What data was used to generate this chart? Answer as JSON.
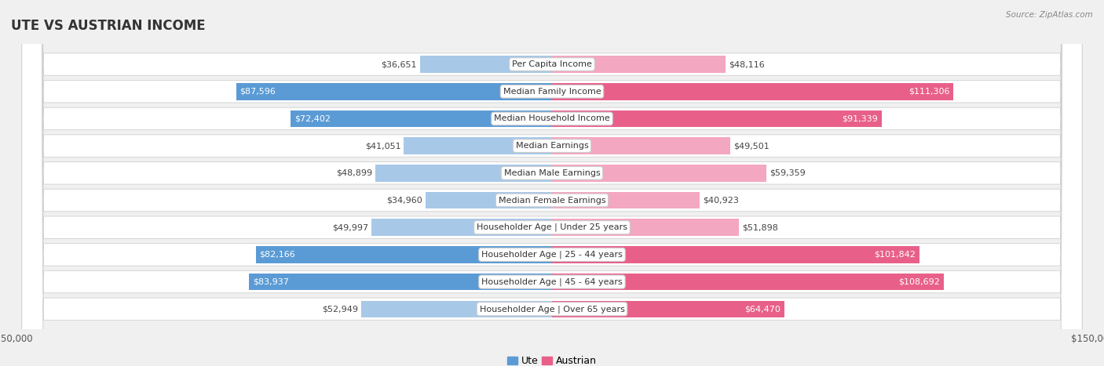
{
  "title": "UTE VS AUSTRIAN INCOME",
  "source": "Source: ZipAtlas.com",
  "categories": [
    "Per Capita Income",
    "Median Family Income",
    "Median Household Income",
    "Median Earnings",
    "Median Male Earnings",
    "Median Female Earnings",
    "Householder Age | Under 25 years",
    "Householder Age | 25 - 44 years",
    "Householder Age | 45 - 64 years",
    "Householder Age | Over 65 years"
  ],
  "ute_values": [
    36651,
    87596,
    72402,
    41051,
    48899,
    34960,
    49997,
    82166,
    83937,
    52949
  ],
  "austrian_values": [
    48116,
    111306,
    91339,
    49501,
    59359,
    40923,
    51898,
    101842,
    108692,
    64470
  ],
  "ute_labels": [
    "$36,651",
    "$87,596",
    "$72,402",
    "$41,051",
    "$48,899",
    "$34,960",
    "$49,997",
    "$82,166",
    "$83,937",
    "$52,949"
  ],
  "austrian_labels": [
    "$48,116",
    "$111,306",
    "$91,339",
    "$49,501",
    "$59,359",
    "$40,923",
    "$51,898",
    "$101,842",
    "$108,692",
    "$64,470"
  ],
  "ute_color_light": "#a8c8e8",
  "ute_color_dark": "#5b9bd5",
  "austrian_color_light": "#f4a7c0",
  "austrian_color_dark": "#e8608a",
  "max_val": 150000,
  "background_color": "#f0f0f0",
  "row_bg_light": "#f8f8f8",
  "title_fontsize": 12,
  "label_fontsize": 8,
  "category_fontsize": 8,
  "axis_label_fontsize": 8.5,
  "dark_threshold": 60000
}
